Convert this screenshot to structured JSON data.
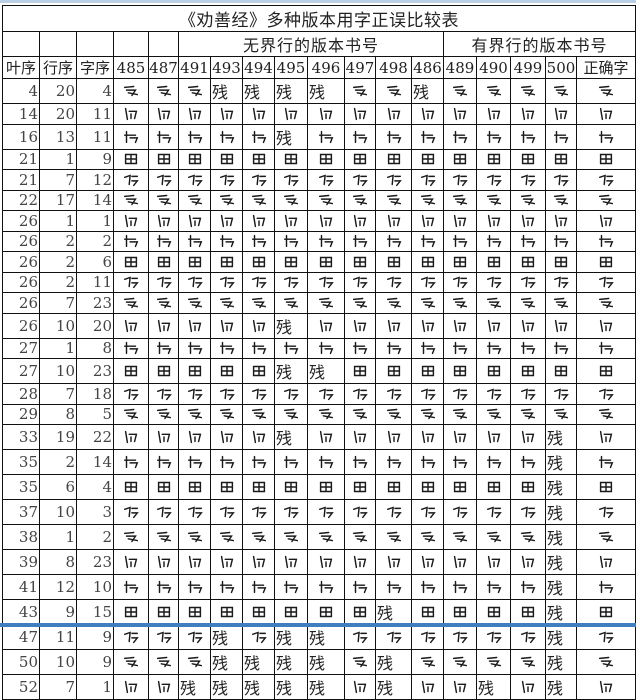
{
  "title": "《劝善经》多种版本用字正误比较表",
  "group_headers": {
    "unruled": "无界行的版本书号",
    "ruled": "有界行的版本书号"
  },
  "columns": [
    "叶序",
    "行序",
    "字序",
    "485",
    "487",
    "491",
    "493",
    "494",
    "495",
    "496",
    "497",
    "498",
    "486",
    "489",
    "490",
    "499",
    "500",
    "正确字"
  ],
  "damaged_label": "残",
  "cell_note": "null = handwritten Tangut-style glyph shown as image",
  "rows": [
    {
      "leaf": "4",
      "line": "20",
      "char": "4",
      "cells": [
        null,
        null,
        null,
        "残",
        "残",
        "残",
        "残",
        null,
        null,
        "残",
        null,
        null,
        null,
        null
      ]
    },
    {
      "leaf": "14",
      "line": "20",
      "char": "11",
      "cells": [
        null,
        null,
        null,
        null,
        null,
        null,
        null,
        null,
        null,
        null,
        null,
        null,
        null,
        null
      ]
    },
    {
      "leaf": "16",
      "line": "13",
      "char": "11",
      "cells": [
        null,
        null,
        null,
        null,
        null,
        "残",
        null,
        null,
        null,
        null,
        null,
        null,
        null,
        null
      ]
    },
    {
      "leaf": "21",
      "line": "1",
      "char": "9",
      "cells": [
        null,
        null,
        null,
        null,
        null,
        null,
        null,
        null,
        null,
        null,
        null,
        null,
        null,
        null
      ]
    },
    {
      "leaf": "21",
      "line": "7",
      "char": "12",
      "cells": [
        null,
        null,
        null,
        null,
        null,
        null,
        null,
        null,
        null,
        null,
        null,
        null,
        null,
        null
      ]
    },
    {
      "leaf": "22",
      "line": "17",
      "char": "14",
      "cells": [
        null,
        null,
        null,
        null,
        null,
        null,
        null,
        null,
        null,
        null,
        null,
        null,
        null,
        null
      ]
    },
    {
      "leaf": "26",
      "line": "1",
      "char": "1",
      "cells": [
        null,
        null,
        null,
        null,
        null,
        null,
        null,
        null,
        null,
        null,
        null,
        null,
        null,
        null
      ]
    },
    {
      "leaf": "26",
      "line": "2",
      "char": "2",
      "cells": [
        null,
        null,
        null,
        null,
        null,
        null,
        null,
        null,
        null,
        null,
        null,
        null,
        null,
        null
      ]
    },
    {
      "leaf": "26",
      "line": "2",
      "char": "6",
      "cells": [
        null,
        null,
        null,
        null,
        null,
        null,
        null,
        null,
        null,
        null,
        null,
        null,
        null,
        null
      ]
    },
    {
      "leaf": "26",
      "line": "2",
      "char": "11",
      "cells": [
        null,
        null,
        null,
        null,
        null,
        null,
        null,
        null,
        null,
        null,
        null,
        null,
        null,
        null
      ]
    },
    {
      "leaf": "26",
      "line": "7",
      "char": "23",
      "cells": [
        null,
        null,
        null,
        null,
        null,
        null,
        null,
        null,
        null,
        null,
        null,
        null,
        null,
        null
      ]
    },
    {
      "leaf": "26",
      "line": "10",
      "char": "20",
      "cells": [
        null,
        null,
        null,
        null,
        null,
        "残",
        null,
        null,
        null,
        null,
        null,
        null,
        null,
        null
      ]
    },
    {
      "leaf": "27",
      "line": "1",
      "char": "8",
      "cells": [
        null,
        null,
        null,
        null,
        null,
        null,
        null,
        null,
        null,
        null,
        null,
        null,
        null,
        null
      ]
    },
    {
      "leaf": "27",
      "line": "10",
      "char": "23",
      "cells": [
        null,
        null,
        null,
        null,
        null,
        "残",
        "残",
        null,
        null,
        null,
        null,
        null,
        null,
        null
      ]
    },
    {
      "leaf": "28",
      "line": "7",
      "char": "18",
      "cells": [
        null,
        null,
        null,
        null,
        null,
        null,
        null,
        null,
        null,
        null,
        null,
        null,
        null,
        null
      ]
    },
    {
      "leaf": "29",
      "line": "8",
      "char": "5",
      "cells": [
        null,
        null,
        null,
        null,
        null,
        null,
        null,
        null,
        null,
        null,
        null,
        null,
        null,
        null
      ]
    },
    {
      "leaf": "33",
      "line": "19",
      "char": "22",
      "cells": [
        null,
        null,
        null,
        null,
        null,
        "残",
        null,
        null,
        null,
        null,
        null,
        null,
        null,
        "残"
      ]
    },
    {
      "leaf": "35",
      "line": "2",
      "char": "14",
      "cells": [
        null,
        null,
        null,
        null,
        null,
        null,
        null,
        null,
        null,
        null,
        null,
        null,
        null,
        "残"
      ]
    },
    {
      "leaf": "35",
      "line": "6",
      "char": "4",
      "cells": [
        null,
        null,
        null,
        null,
        null,
        null,
        null,
        null,
        null,
        null,
        null,
        null,
        null,
        "残"
      ]
    },
    {
      "leaf": "37",
      "line": "10",
      "char": "3",
      "cells": [
        null,
        null,
        null,
        null,
        null,
        null,
        null,
        null,
        null,
        null,
        null,
        null,
        null,
        "残"
      ]
    },
    {
      "leaf": "38",
      "line": "1",
      "char": "2",
      "cells": [
        null,
        null,
        null,
        null,
        null,
        null,
        null,
        null,
        null,
        null,
        null,
        null,
        null,
        "残"
      ]
    },
    {
      "leaf": "39",
      "line": "8",
      "char": "23",
      "cells": [
        null,
        null,
        null,
        null,
        null,
        null,
        null,
        null,
        null,
        null,
        null,
        null,
        null,
        "残"
      ]
    },
    {
      "leaf": "41",
      "line": "12",
      "char": "10",
      "cells": [
        null,
        null,
        null,
        null,
        null,
        null,
        null,
        null,
        null,
        null,
        null,
        null,
        null,
        "残"
      ]
    },
    {
      "leaf": "43",
      "line": "9",
      "char": "15",
      "cells": [
        null,
        null,
        null,
        null,
        null,
        null,
        null,
        null,
        "残",
        null,
        null,
        null,
        null,
        "残"
      ]
    },
    {
      "leaf": "47",
      "line": "11",
      "char": "9",
      "cells": [
        null,
        null,
        null,
        "残",
        null,
        "残",
        "残",
        null,
        null,
        null,
        null,
        null,
        null,
        "残"
      ]
    },
    {
      "leaf": "50",
      "line": "10",
      "char": "9",
      "cells": [
        null,
        null,
        null,
        "残",
        "残",
        "残",
        "残",
        null,
        "残",
        null,
        null,
        null,
        null,
        "残"
      ]
    },
    {
      "leaf": "52",
      "line": "7",
      "char": "1",
      "cells": [
        null,
        null,
        "残",
        "残",
        "残",
        "残",
        "残",
        null,
        "残",
        null,
        null,
        "残",
        null,
        "残"
      ]
    }
  ],
  "colors": {
    "line": "#111111",
    "frame": "#3f7fc0"
  }
}
